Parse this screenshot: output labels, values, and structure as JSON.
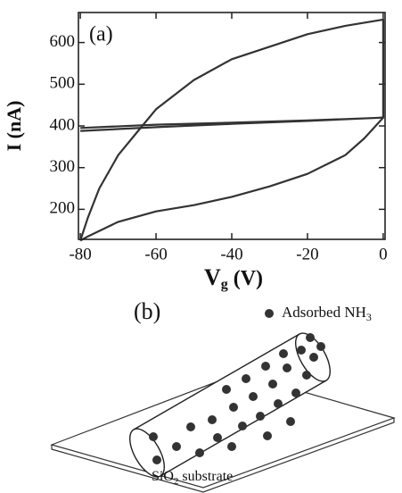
{
  "chart_data": {
    "type": "line",
    "panel_label": "(a)",
    "xlabel": [
      "V",
      "g",
      " (V)"
    ],
    "ylabel": "I (nA)",
    "series": [
      {
        "color": "#333333",
        "x": [
          -80,
          -78,
          -75,
          -70,
          -65,
          -60,
          -50,
          -40,
          -30,
          -20,
          -10,
          0,
          0,
          -5,
          -10,
          -20,
          -30,
          -40,
          -50,
          -60,
          -70,
          -78,
          -80
        ],
        "values": [
          125,
          180,
          250,
          330,
          385,
          440,
          510,
          560,
          590,
          620,
          640,
          655,
          420,
          370,
          330,
          285,
          255,
          230,
          210,
          195,
          170,
          135,
          125
        ]
      },
      {
        "color": "#333333",
        "x": [
          -80,
          -60,
          -40,
          -20,
          0,
          -20,
          -40,
          -60,
          -80
        ],
        "values": [
          395,
          403,
          408,
          413,
          420,
          412,
          405,
          397,
          388
        ]
      }
    ],
    "xlim": [
      -80.5,
      0.5
    ],
    "xticks": [
      -80,
      -60,
      -40,
      -20,
      0
    ],
    "ylim": [
      128,
      672
    ],
    "yticks": [
      200,
      300,
      400,
      500,
      600
    ]
  },
  "diagram": {
    "panel_label": "(b)",
    "legend": [
      "Adsorbed NH",
      "3"
    ],
    "substrate_label": [
      "SiO",
      "2",
      " substrate"
    ]
  }
}
